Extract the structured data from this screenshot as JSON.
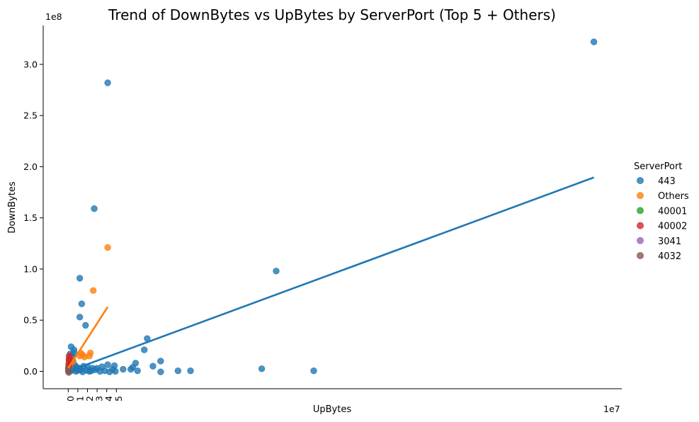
{
  "chart_data": {
    "type": "scatter",
    "title": "Trend of DownBytes vs UpBytes by ServerPort (Top 5 + Others)",
    "xlabel": "UpBytes",
    "ylabel": "DownBytes",
    "x_offset_label": "1e7",
    "y_offset_label": "1e8",
    "xlim": [
      -2.6,
      57.5
    ],
    "ylim": [
      -0.17,
      3.38
    ],
    "x_ticks": [
      0,
      1,
      2,
      3,
      4,
      5
    ],
    "y_ticks": [
      0.0,
      0.5,
      1.0,
      1.5,
      2.0,
      2.5,
      3.0
    ],
    "x_tick_labels": [
      "0",
      "1",
      "2",
      "3",
      "4",
      "5"
    ],
    "y_tick_labels": [
      "0.0",
      "0.5",
      "1.0",
      "1.5",
      "2.0",
      "2.5",
      "3.0"
    ],
    "legend": {
      "title": "ServerPort",
      "placement": "center-right outside"
    },
    "series": [
      {
        "name": "443",
        "color": "#1f77b4",
        "points": [
          [
            54.6,
            3.22
          ],
          [
            4.1,
            2.82
          ],
          [
            2.7,
            1.59
          ],
          [
            21.6,
            0.98
          ],
          [
            1.2,
            0.91
          ],
          [
            1.4,
            0.66
          ],
          [
            1.2,
            0.53
          ],
          [
            1.8,
            0.45
          ],
          [
            8.2,
            0.32
          ],
          [
            7.9,
            0.21
          ],
          [
            9.6,
            0.1
          ],
          [
            8.8,
            0.05
          ],
          [
            7.0,
            0.08
          ],
          [
            6.7,
            0.04
          ],
          [
            6.5,
            0.02
          ],
          [
            5.7,
            0.02
          ],
          [
            7.2,
            0.005
          ],
          [
            9.6,
            -0.005
          ],
          [
            11.4,
            0.005
          ],
          [
            12.7,
            0.005
          ],
          [
            20.1,
            0.025
          ],
          [
            25.5,
            0.005
          ],
          [
            4.8,
            0.055
          ],
          [
            4.1,
            0.065
          ],
          [
            3.5,
            0.045
          ],
          [
            3.0,
            0.03
          ],
          [
            2.5,
            0.03
          ],
          [
            2.0,
            0.045
          ],
          [
            1.6,
            0.05
          ],
          [
            1.2,
            0.03
          ],
          [
            0.9,
            0.04
          ],
          [
            0.7,
            0.06
          ],
          [
            0.5,
            0.1
          ],
          [
            0.4,
            0.15
          ],
          [
            0.6,
            0.18
          ],
          [
            0.6,
            0.21
          ],
          [
            0.3,
            0.24
          ],
          [
            0.2,
            0.17
          ],
          [
            0.1,
            0.12
          ],
          [
            0.4,
            0.08
          ],
          [
            0.2,
            0.05
          ],
          [
            0.5,
            0.02
          ],
          [
            0.8,
            0.0
          ],
          [
            1.0,
            0.01
          ],
          [
            1.5,
            -0.005
          ],
          [
            2.2,
            0.0
          ],
          [
            2.8,
            0.015
          ],
          [
            3.3,
            0.0
          ],
          [
            3.8,
            0.005
          ],
          [
            4.3,
            -0.005
          ],
          [
            4.9,
            0.0
          ],
          [
            4.6,
            0.02
          ],
          [
            0.1,
            0.0
          ],
          [
            0.05,
            0.02
          ],
          [
            0.3,
            0.005
          ],
          [
            1.3,
            0.015
          ],
          [
            1.9,
            0.01
          ],
          [
            2.4,
            0.005
          ],
          [
            0.15,
            0.09
          ],
          [
            0.35,
            0.04
          ]
        ],
        "regression": {
          "x": [
            0.0,
            54.6
          ],
          "y": [
            0.0,
            1.895
          ]
        }
      },
      {
        "name": "Others",
        "color": "#ff7f0e",
        "points": [
          [
            4.1,
            1.21
          ],
          [
            2.6,
            0.79
          ],
          [
            1.3,
            0.18
          ],
          [
            2.3,
            0.18
          ],
          [
            1.5,
            0.16
          ],
          [
            2.2,
            0.15
          ],
          [
            1.7,
            0.14
          ],
          [
            1.2,
            0.15
          ],
          [
            0.5,
            0.1
          ],
          [
            0.2,
            0.06
          ],
          [
            0.1,
            0.03
          ],
          [
            0.05,
            0.01
          ]
        ],
        "regression": {
          "x": [
            0.0,
            4.1
          ],
          "y": [
            0.03,
            0.63
          ]
        }
      },
      {
        "name": "40001",
        "color": "#2ca02c",
        "points": [
          [
            0.05,
            0.05
          ],
          [
            0.1,
            0.02
          ],
          [
            0.02,
            0.0
          ]
        ]
      },
      {
        "name": "40002",
        "color": "#d62728",
        "points": [
          [
            0.1,
            0.15
          ],
          [
            0.15,
            0.13
          ],
          [
            0.08,
            0.11
          ],
          [
            0.12,
            0.09
          ],
          [
            0.05,
            0.07
          ],
          [
            0.1,
            0.05
          ],
          [
            0.03,
            0.03
          ],
          [
            0.07,
            0.01
          ]
        ]
      },
      {
        "name": "3041",
        "color": "#9467bd",
        "points": [
          [
            0.05,
            0.02
          ],
          [
            0.02,
            0.0
          ]
        ]
      },
      {
        "name": "4032",
        "color": "#8c564b",
        "points": [
          [
            0.03,
            0.01
          ],
          [
            0.06,
            -0.01
          ],
          [
            0.01,
            0.03
          ]
        ]
      }
    ]
  }
}
